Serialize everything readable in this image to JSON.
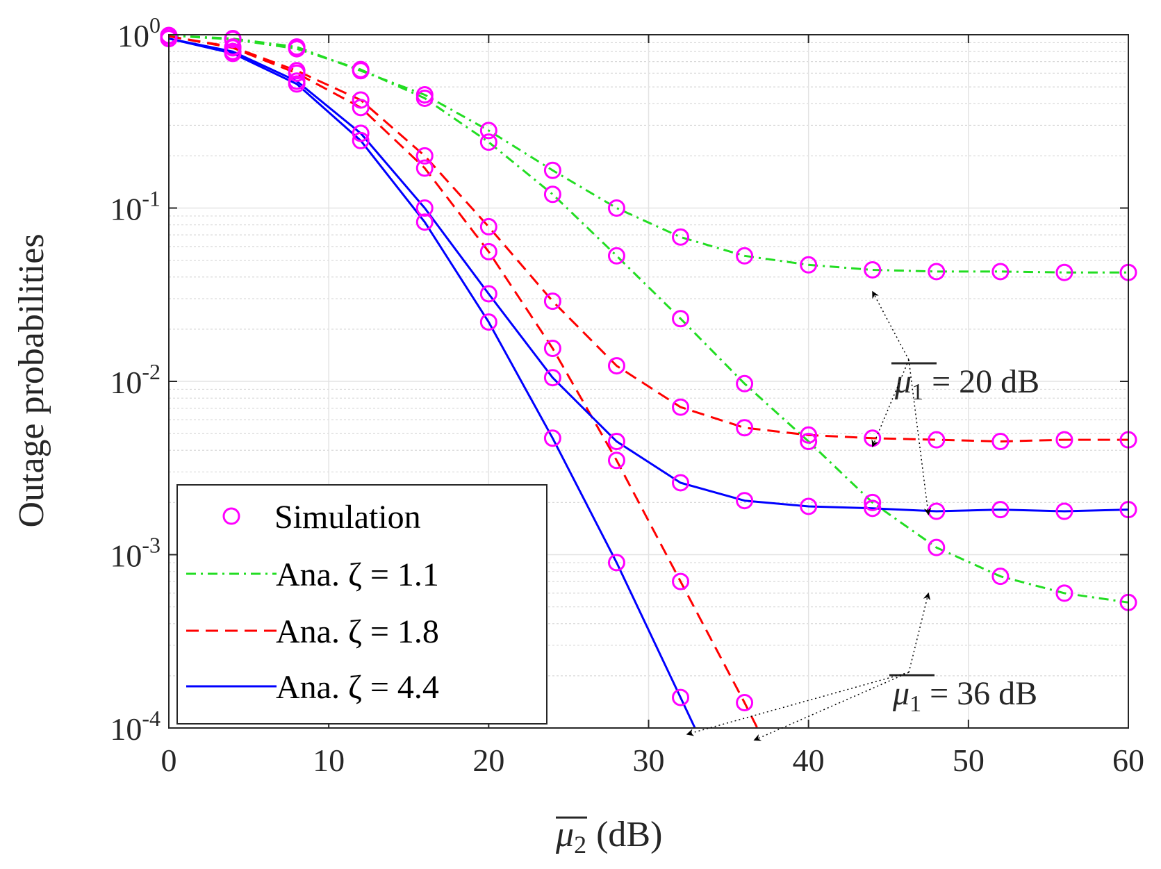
{
  "chart_data": {
    "type": "line",
    "title": "",
    "xlabel_base": "μ",
    "xlabel_sub": "2",
    "xlabel_unit": "(dB)",
    "ylabel": "Outage probabilities",
    "xlim": [
      0,
      60
    ],
    "ylim": [
      0.0001,
      1
    ],
    "yscale": "log",
    "grid": true,
    "legend_location": "bottom-left",
    "x_ticks": [
      "0",
      "10",
      "20",
      "30",
      "40",
      "50",
      "60"
    ],
    "y_ticks": [
      {
        "base": "10",
        "exp": "0"
      },
      {
        "base": "10",
        "exp": "-1"
      },
      {
        "base": "10",
        "exp": "-2"
      },
      {
        "base": "10",
        "exp": "-3"
      },
      {
        "base": "10",
        "exp": "-4"
      }
    ],
    "legend": [
      {
        "label": "Simulation",
        "marker": "circle",
        "color": "#ff00ff"
      },
      {
        "label": "Ana. ζ = 1.1",
        "dash": "dashdot",
        "color": "#22dd22"
      },
      {
        "label": "Ana. ζ = 1.8",
        "dash": "dashed",
        "color": "#ff0000"
      },
      {
        "label": "Ana. ζ = 4.4",
        "dash": "solid",
        "color": "#0000ff"
      }
    ],
    "series": [
      {
        "name": "ζ = 1.1, μ1 = 20 dB",
        "color": "#22dd22",
        "dash": "dashdot",
        "x": [
          0,
          4,
          8,
          12,
          16,
          20,
          24,
          28,
          32,
          36,
          40,
          44,
          48,
          52,
          56,
          60
        ],
        "values": [
          0.99,
          0.95,
          0.85,
          0.62,
          0.45,
          0.28,
          0.165,
          0.1,
          0.068,
          0.053,
          0.047,
          0.044,
          0.043,
          0.043,
          0.0425,
          0.0425
        ]
      },
      {
        "name": "ζ = 1.1, μ1 = 36 dB",
        "color": "#22dd22",
        "dash": "dashdot",
        "x": [
          0,
          4,
          8,
          12,
          16,
          20,
          24,
          28,
          32,
          36,
          40,
          44,
          48,
          52,
          56,
          60
        ],
        "values": [
          0.99,
          0.94,
          0.83,
          0.63,
          0.43,
          0.24,
          0.12,
          0.053,
          0.023,
          0.0097,
          0.0045,
          0.002,
          0.0011,
          0.00075,
          0.0006,
          0.00053
        ]
      },
      {
        "name": "ζ = 1.8, μ1 = 20 dB",
        "color": "#ff0000",
        "dash": "dashed",
        "x": [
          0,
          4,
          8,
          12,
          16,
          20,
          24,
          28,
          32,
          36,
          40,
          44,
          48,
          52,
          56,
          60
        ],
        "values": [
          0.98,
          0.85,
          0.62,
          0.42,
          0.2,
          0.078,
          0.029,
          0.0123,
          0.0071,
          0.0054,
          0.0049,
          0.0047,
          0.0046,
          0.0045,
          0.0046,
          0.0046
        ]
      },
      {
        "name": "ζ = 1.8, μ1 = 36 dB",
        "color": "#ff0000",
        "dash": "dashed",
        "x": [
          0,
          4,
          8,
          12,
          16,
          20,
          24,
          28,
          32,
          36,
          36.8
        ],
        "values": [
          0.98,
          0.84,
          0.6,
          0.38,
          0.17,
          0.056,
          0.0155,
          0.0035,
          0.0007,
          0.00014,
          0.0001
        ]
      },
      {
        "name": "ζ = 4.4, μ1 = 20 dB",
        "color": "#0000ff",
        "dash": "solid",
        "x": [
          0,
          4,
          8,
          12,
          16,
          20,
          24,
          28,
          32,
          36,
          40,
          44,
          48,
          52,
          56,
          60
        ],
        "values": [
          0.95,
          0.8,
          0.54,
          0.27,
          0.1,
          0.032,
          0.0105,
          0.0045,
          0.0026,
          0.00205,
          0.0019,
          0.00185,
          0.00178,
          0.00182,
          0.00178,
          0.00182
        ]
      },
      {
        "name": "ζ = 4.4, μ1 = 36 dB",
        "color": "#0000ff",
        "dash": "solid",
        "x": [
          0,
          4,
          8,
          12,
          16,
          20,
          24,
          28,
          32,
          32.9
        ],
        "values": [
          0.95,
          0.78,
          0.52,
          0.245,
          0.083,
          0.022,
          0.0047,
          0.0009,
          0.00015,
          0.0001
        ]
      }
    ],
    "simulation_points": [
      {
        "x": [
          0,
          4,
          8,
          12,
          16,
          20,
          24,
          28,
          32,
          36,
          40,
          44,
          48,
          52,
          56,
          60
        ],
        "values": [
          0.99,
          0.95,
          0.85,
          0.62,
          0.45,
          0.28,
          0.165,
          0.1,
          0.068,
          0.053,
          0.047,
          0.044,
          0.043,
          0.043,
          0.0425,
          0.0425
        ]
      },
      {
        "x": [
          0,
          4,
          8,
          12,
          16,
          20,
          24,
          28,
          32,
          36,
          40,
          44,
          48,
          52,
          56,
          60
        ],
        "values": [
          0.99,
          0.94,
          0.83,
          0.63,
          0.43,
          0.24,
          0.12,
          0.053,
          0.023,
          0.0097,
          0.0045,
          0.002,
          0.0011,
          0.00075,
          0.0006,
          0.00053
        ]
      },
      {
        "x": [
          0,
          4,
          8,
          12,
          16,
          20,
          24,
          28,
          32,
          36,
          40,
          44,
          48,
          52,
          56,
          60
        ],
        "values": [
          0.98,
          0.85,
          0.62,
          0.42,
          0.2,
          0.078,
          0.029,
          0.0123,
          0.0071,
          0.0054,
          0.0049,
          0.0047,
          0.0046,
          0.0045,
          0.0046,
          0.0046
        ]
      },
      {
        "x": [
          0,
          4,
          8,
          12,
          16,
          20,
          24,
          28,
          32,
          36
        ],
        "values": [
          0.98,
          0.84,
          0.6,
          0.38,
          0.17,
          0.056,
          0.0155,
          0.0035,
          0.0007,
          0.00014
        ]
      },
      {
        "x": [
          0,
          4,
          8,
          12,
          16,
          20,
          24,
          28,
          32,
          36,
          40,
          44,
          48,
          52,
          56,
          60
        ],
        "values": [
          0.95,
          0.8,
          0.54,
          0.27,
          0.1,
          0.032,
          0.0105,
          0.0045,
          0.0026,
          0.00205,
          0.0019,
          0.00185,
          0.00178,
          0.00182,
          0.00178,
          0.00182
        ]
      },
      {
        "x": [
          0,
          4,
          8,
          12,
          16,
          20,
          24,
          28,
          32
        ],
        "values": [
          0.95,
          0.78,
          0.52,
          0.245,
          0.083,
          0.022,
          0.0047,
          0.0009,
          0.00015
        ]
      }
    ],
    "annotations": [
      {
        "base": "μ",
        "sub": "1",
        "rest": " = 20 dB",
        "arrows_to": [
          {
            "x": 44,
            "y": 0.033
          },
          {
            "x": 44,
            "y": 0.0042
          },
          {
            "x": 47.5,
            "y": 0.0017
          }
        ]
      },
      {
        "base": "μ",
        "sub": "1",
        "rest": " = 36 dB",
        "arrows_to": [
          {
            "x": 47.5,
            "y": 0.0006
          },
          {
            "x": 32.4,
            "y": 9.2e-05
          },
          {
            "x": 36.6,
            "y": 8.5e-05
          }
        ]
      }
    ]
  }
}
